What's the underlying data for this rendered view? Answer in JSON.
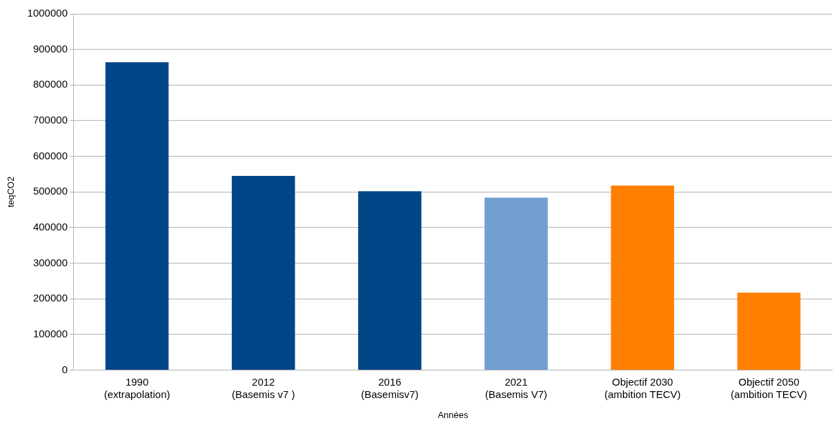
{
  "chart_data": {
    "type": "bar",
    "categories": [
      "1990\n(extrapolation)",
      "2012\n(Basemis v7 )",
      "2016\n(Basemisv7)",
      "2021\n(Basemis V7)",
      "Objectif 2030\n(ambition TECV)",
      "Objectif 2050\n(ambition TECV)"
    ],
    "values": [
      864000,
      545000,
      502000,
      484000,
      518000,
      217000
    ],
    "colors": [
      "#004586",
      "#004586",
      "#004586",
      "#729fcf",
      "#ff8000",
      "#ff8000"
    ],
    "ylim": [
      0,
      1000000
    ],
    "yticks": [
      0,
      100000,
      200000,
      300000,
      400000,
      500000,
      600000,
      700000,
      800000,
      900000,
      1000000
    ],
    "xlabel": "Années",
    "ylabel": "teqCO2",
    "grid": "y",
    "legend": false
  }
}
